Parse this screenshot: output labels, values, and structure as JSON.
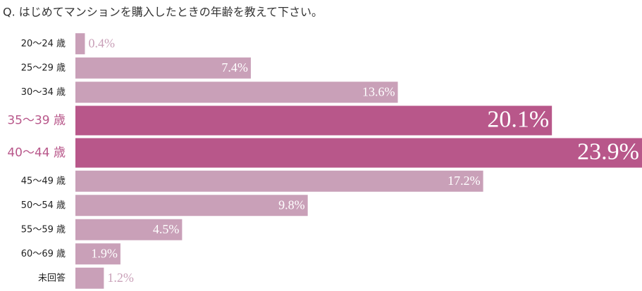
{
  "chart_data": {
    "type": "hbar",
    "title": "Q. はじめてマンションを購入したときの年齢を教えて下さい。",
    "categories": [
      "20〜24 歳",
      "25〜29 歳",
      "30〜34 歳",
      "35〜39 歳",
      "40〜44 歳",
      "45〜49 歳",
      "50〜54 歳",
      "55〜59 歳",
      "60〜69 歳",
      "未回答"
    ],
    "values": [
      0.4,
      7.4,
      13.6,
      20.1,
      23.9,
      17.2,
      9.8,
      4.5,
      1.9,
      1.2
    ],
    "value_labels": [
      "0.4%",
      "7.4%",
      "13.6%",
      "20.1%",
      "23.9%",
      "17.2%",
      "9.8%",
      "4.5%",
      "1.9%",
      "1.2%"
    ],
    "colors": [
      "#c9a0b8",
      "#c9a0b8",
      "#c9a0b8",
      "#b8578a",
      "#b8578a",
      "#c9a0b8",
      "#c9a0b8",
      "#c9a0b8",
      "#c9a0b8",
      "#c9a0b8"
    ],
    "highlight_color": "#b8578a",
    "xlim": [
      0,
      23.9
    ]
  }
}
